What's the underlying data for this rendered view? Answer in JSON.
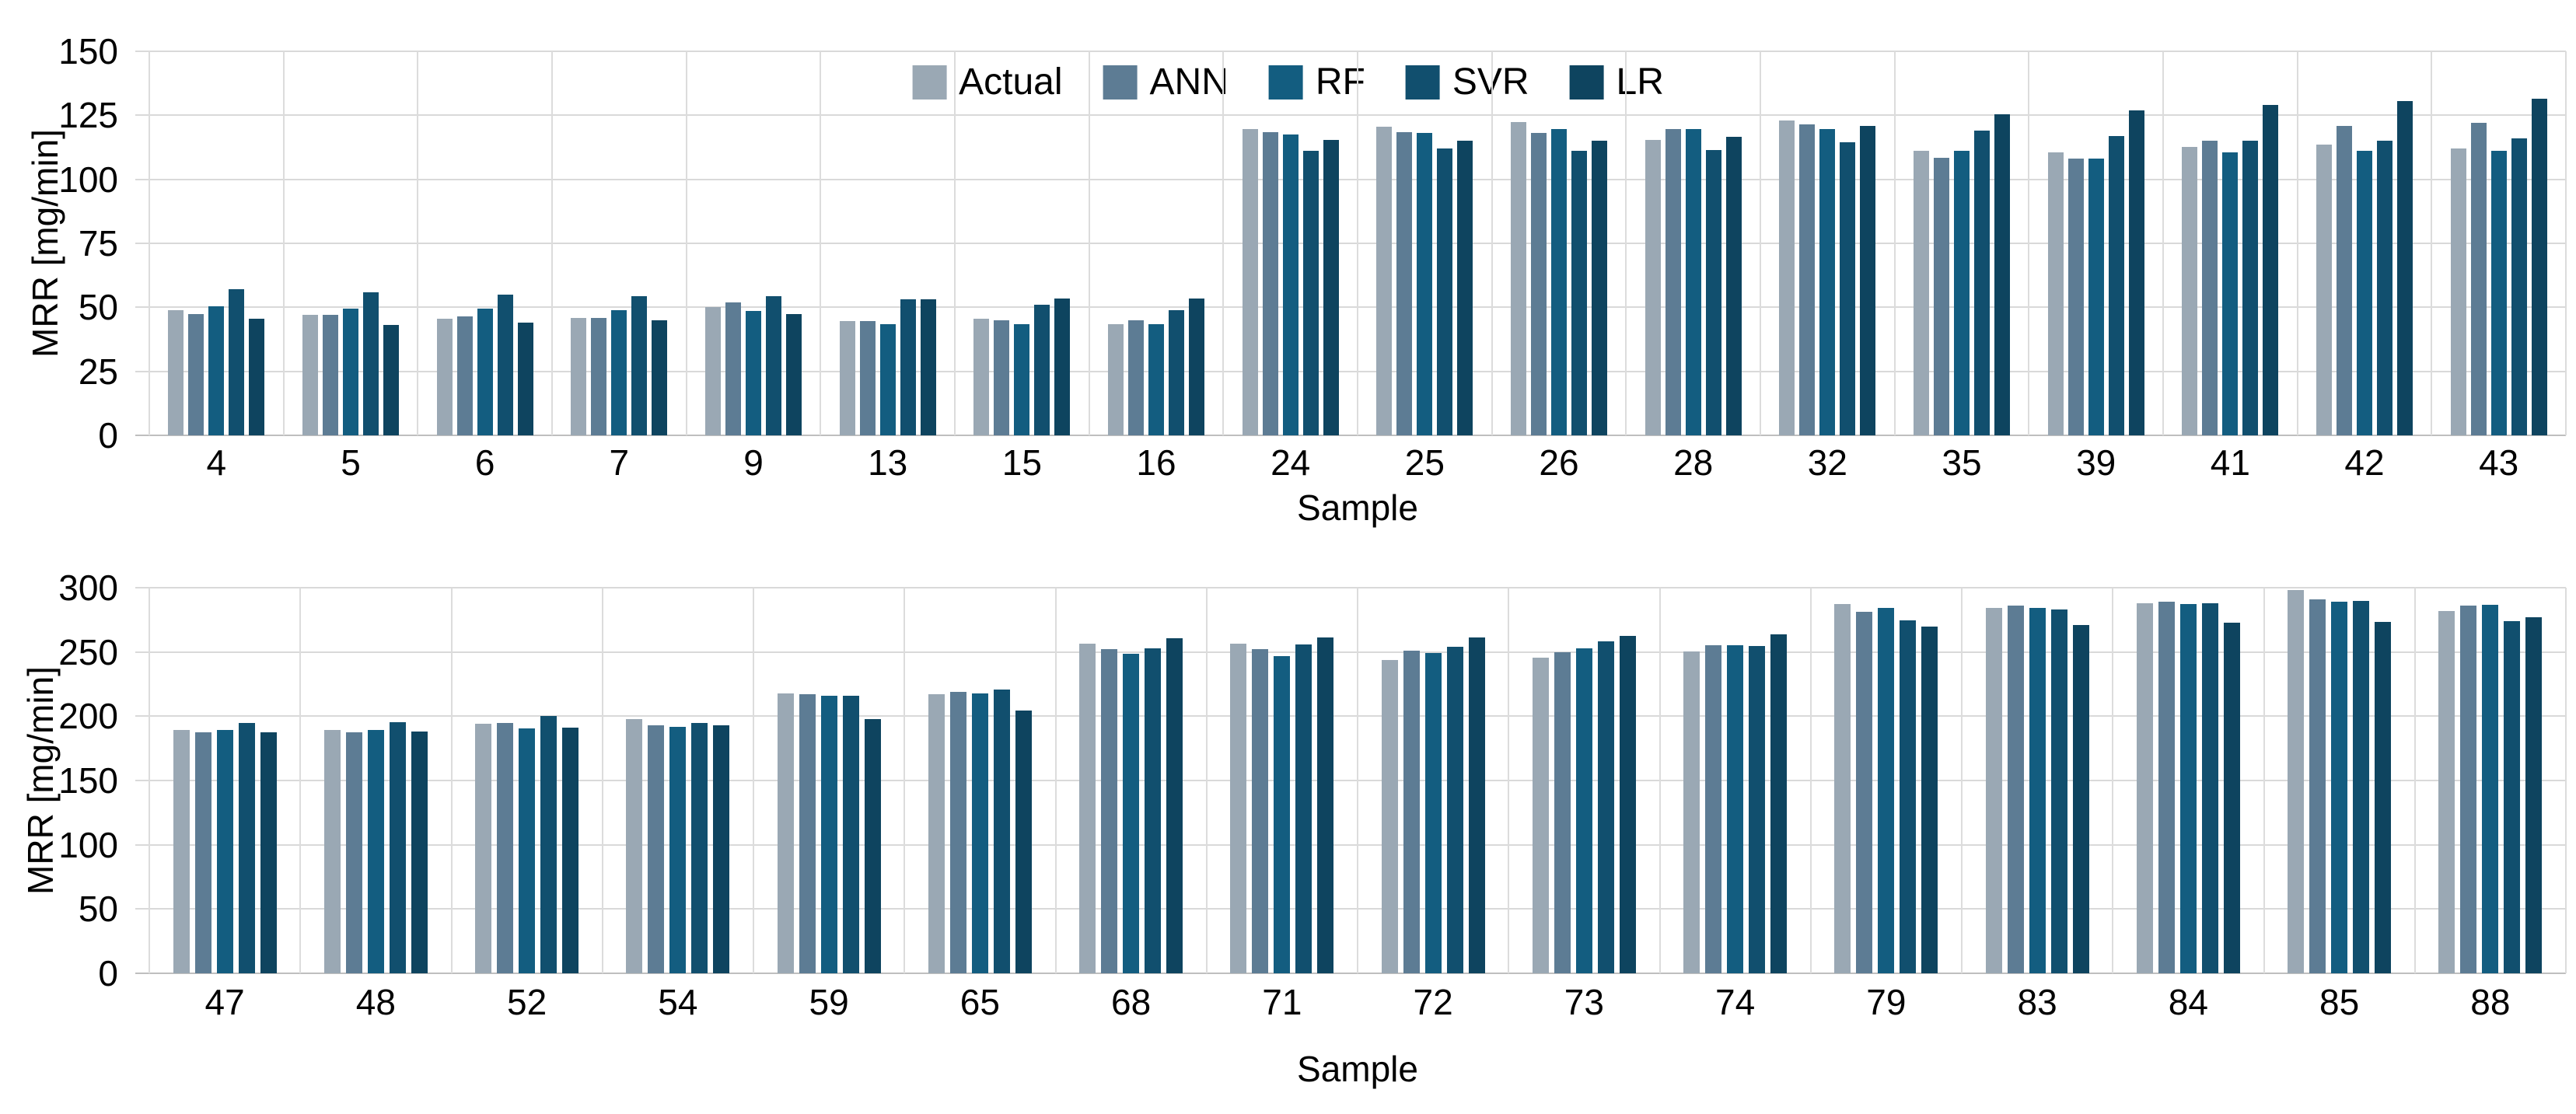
{
  "figure": {
    "background": "#ffffff",
    "grid_color": "#d9d9d9",
    "zero_axis_color": "#bfbfbf",
    "category_line_color": "#dcdcdc",
    "text_color": "#000000"
  },
  "legend": {
    "items": [
      {
        "label": "Actual",
        "color": "#9AA8B4"
      },
      {
        "label": "ANN",
        "color": "#5D7C94"
      },
      {
        "label": "RF",
        "color": "#135D80"
      },
      {
        "label": "SVR",
        "color": "#114F6E"
      },
      {
        "label": "LR",
        "color": "#0E445F"
      }
    ]
  },
  "chart_data": [
    {
      "type": "bar",
      "title": "",
      "xlabel": "Sample",
      "ylabel": "MRR [mg/min]",
      "ylim": [
        0,
        150
      ],
      "yticks": [
        0,
        25,
        50,
        75,
        100,
        125,
        150
      ],
      "grid": true,
      "legend_position": "top-center",
      "categories": [
        "4",
        "5",
        "6",
        "7",
        "9",
        "13",
        "15",
        "16",
        "24",
        "25",
        "26",
        "28",
        "32",
        "35",
        "39",
        "41",
        "42",
        "43"
      ],
      "series": [
        {
          "name": "Actual",
          "color": "#9AA8B4",
          "values": [
            49,
            47,
            45.5,
            46,
            50,
            44.5,
            45.5,
            43.5,
            119.5,
            120.5,
            122.5,
            115.5,
            123,
            111,
            110.5,
            112.5,
            113.5,
            112
          ]
        },
        {
          "name": "ANN",
          "color": "#5D7C94",
          "values": [
            47.5,
            47,
            46.5,
            46,
            52,
            44.5,
            45,
            45,
            118.5,
            118.5,
            118,
            119.5,
            121.5,
            108.5,
            108,
            115,
            121,
            122
          ]
        },
        {
          "name": "RF",
          "color": "#135D80",
          "values": [
            50.5,
            49.5,
            49.5,
            49,
            48.5,
            43.5,
            43.5,
            43.5,
            117.5,
            118,
            119.5,
            119.5,
            119.5,
            111,
            108,
            110.5,
            111,
            111
          ]
        },
        {
          "name": "SVR",
          "color": "#114F6E",
          "values": [
            57,
            56,
            55,
            54.5,
            54.5,
            53,
            51,
            49,
            111,
            112,
            111,
            111.5,
            114.5,
            119,
            117,
            115,
            115,
            116
          ]
        },
        {
          "name": "LR",
          "color": "#0E445F",
          "values": [
            45.5,
            43,
            44,
            45,
            47.5,
            53,
            53.5,
            53.5,
            115.5,
            115,
            115,
            116.5,
            121,
            125.5,
            127,
            129,
            130.5,
            131.5
          ]
        }
      ]
    },
    {
      "type": "bar",
      "title": "",
      "xlabel": "Sample",
      "ylabel": "MRR [mg/min]",
      "ylim": [
        0,
        300
      ],
      "yticks": [
        0,
        50,
        100,
        150,
        200,
        250,
        300
      ],
      "grid": true,
      "legend_position": "none",
      "categories": [
        "47",
        "48",
        "52",
        "54",
        "59",
        "65",
        "68",
        "71",
        "72",
        "73",
        "74",
        "79",
        "83",
        "84",
        "85",
        "88"
      ],
      "series": [
        {
          "name": "Actual",
          "color": "#9AA8B4",
          "values": [
            189.5,
            189.5,
            194,
            198,
            218,
            217,
            256.5,
            256.5,
            244,
            245.5,
            250.5,
            287.5,
            284.5,
            288,
            298,
            282
          ]
        },
        {
          "name": "ANN",
          "color": "#5D7C94",
          "values": [
            187.5,
            187.5,
            195,
            193,
            217,
            219,
            252.5,
            252,
            251,
            250,
            255,
            281.5,
            286,
            289,
            291,
            286
          ]
        },
        {
          "name": "RF",
          "color": "#135D80",
          "values": [
            189.5,
            189.5,
            190.5,
            191.5,
            216,
            218,
            248.5,
            247,
            249,
            253,
            255,
            284,
            284,
            287.5,
            289,
            286.5
          ]
        },
        {
          "name": "SVR",
          "color": "#114F6E",
          "values": [
            195,
            195.5,
            200,
            195,
            216,
            221,
            253,
            256,
            254,
            258,
            254.5,
            274.5,
            283,
            288,
            289.5,
            274
          ]
        },
        {
          "name": "LR",
          "color": "#0E445F",
          "values": [
            187.5,
            188,
            191,
            193,
            198,
            204.5,
            260.5,
            261,
            261,
            262.5,
            263.5,
            270,
            271,
            272.5,
            273.5,
            277
          ]
        }
      ]
    }
  ]
}
